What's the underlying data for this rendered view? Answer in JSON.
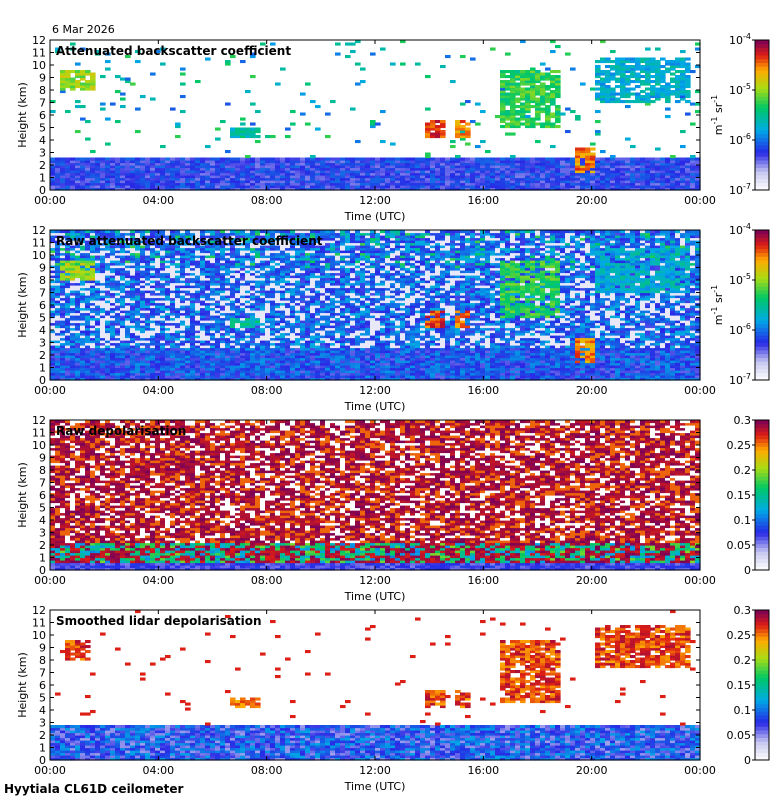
{
  "date": "6 Mar 2026",
  "footer": "Hyytiala CL61D ceilometer",
  "chart_data": [
    {
      "type": "heatmap",
      "title": "Attenuated backscatter coefficient",
      "xlabel": "Time (UTC)",
      "ylabel": "Height (km)",
      "xticks": [
        "00:00",
        "04:00",
        "08:00",
        "12:00",
        "16:00",
        "20:00",
        "00:00"
      ],
      "xlim_hours": [
        0,
        24
      ],
      "ylim": [
        0,
        12
      ],
      "yticks": [
        0,
        1,
        2,
        3,
        4,
        5,
        6,
        7,
        8,
        9,
        10,
        11,
        12
      ],
      "colorbar": {
        "scale": "log",
        "range": [
          1e-07,
          0.0001
        ],
        "tick_bases": [
          "10",
          "10",
          "10",
          "10"
        ],
        "tick_exponents": [
          "-7",
          "-6",
          "-5",
          "-4"
        ],
        "units": [
          "m",
          "-1",
          "sr",
          "-1"
        ]
      },
      "noise": "low",
      "features": [
        {
          "t": [
            0,
            24
          ],
          "h": [
            0,
            2.6
          ],
          "level": 0.15,
          "desc": "boundary layer aerosol"
        },
        {
          "t": [
            0.4,
            1.6
          ],
          "h": [
            8.0,
            9.5
          ],
          "level": 0.75
        },
        {
          "t": [
            6.6,
            7.7
          ],
          "h": [
            4.3,
            5.0
          ],
          "level": 0.55
        },
        {
          "t": [
            13.9,
            14.6
          ],
          "h": [
            4.2,
            5.6
          ],
          "level": 0.95
        },
        {
          "t": [
            15.0,
            15.6
          ],
          "h": [
            4.3,
            5.5
          ],
          "level": 0.9
        },
        {
          "t": [
            16.7,
            18.8
          ],
          "h": [
            5.0,
            9.5
          ],
          "level": 0.65
        },
        {
          "t": [
            19.4,
            20.1
          ],
          "h": [
            1.5,
            3.4
          ],
          "level": 0.9
        },
        {
          "t": [
            20.2,
            23.6
          ],
          "h": [
            7.0,
            10.5
          ],
          "level": 0.5
        }
      ]
    },
    {
      "type": "heatmap",
      "title": "Raw attenuated backscatter coefficient",
      "xlabel": "Time (UTC)",
      "ylabel": "Height (km)",
      "xticks": [
        "00:00",
        "04:00",
        "08:00",
        "12:00",
        "16:00",
        "20:00",
        "00:00"
      ],
      "xlim_hours": [
        0,
        24
      ],
      "ylim": [
        0,
        12
      ],
      "yticks": [
        0,
        1,
        2,
        3,
        4,
        5,
        6,
        7,
        8,
        9,
        10,
        11,
        12
      ],
      "colorbar": {
        "scale": "log",
        "range": [
          1e-07,
          0.0001
        ],
        "tick_bases": [
          "10",
          "10",
          "10",
          "10"
        ],
        "tick_exponents": [
          "-7",
          "-6",
          "-5",
          "-4"
        ],
        "units": [
          "m",
          "-1",
          "sr",
          "-1"
        ]
      },
      "noise": "high",
      "features": [
        {
          "t": [
            0,
            24
          ],
          "h": [
            0,
            2.6
          ],
          "level": 0.15
        },
        {
          "t": [
            0.4,
            1.6
          ],
          "h": [
            8.0,
            9.5
          ],
          "level": 0.75
        },
        {
          "t": [
            6.6,
            7.7
          ],
          "h": [
            4.3,
            5.0
          ],
          "level": 0.55
        },
        {
          "t": [
            13.9,
            14.6
          ],
          "h": [
            4.2,
            5.6
          ],
          "level": 0.95
        },
        {
          "t": [
            15.0,
            15.6
          ],
          "h": [
            4.3,
            5.5
          ],
          "level": 0.9
        },
        {
          "t": [
            16.7,
            18.8
          ],
          "h": [
            5.0,
            9.5
          ],
          "level": 0.65
        },
        {
          "t": [
            19.4,
            20.1
          ],
          "h": [
            1.5,
            3.4
          ],
          "level": 0.9
        },
        {
          "t": [
            20.2,
            23.6
          ],
          "h": [
            7.0,
            10.5
          ],
          "level": 0.5
        }
      ]
    },
    {
      "type": "heatmap",
      "title": "Raw depolarisation",
      "xlabel": "Time (UTC)",
      "ylabel": "Height (km)",
      "xticks": [
        "00:00",
        "04:00",
        "08:00",
        "12:00",
        "16:00",
        "20:00",
        "00:00"
      ],
      "xlim_hours": [
        0,
        24
      ],
      "ylim": [
        0,
        12
      ],
      "yticks": [
        0,
        1,
        2,
        3,
        4,
        5,
        6,
        7,
        8,
        9,
        10,
        11,
        12
      ],
      "colorbar": {
        "scale": "linear",
        "range": [
          0,
          0.3
        ],
        "ticks": [
          "0",
          "0.05",
          "0.1",
          "0.15",
          "0.2",
          "0.25",
          "0.3"
        ]
      },
      "noise": "depol",
      "features": []
    },
    {
      "type": "heatmap",
      "title": "Smoothed lidar depolarisation",
      "xlabel": "Time (UTC)",
      "ylabel": "Height (km)",
      "xticks": [
        "00:00",
        "04:00",
        "08:00",
        "12:00",
        "16:00",
        "20:00",
        "00:00"
      ],
      "xlim_hours": [
        0,
        24
      ],
      "ylim": [
        0,
        12
      ],
      "yticks": [
        0,
        1,
        2,
        3,
        4,
        5,
        6,
        7,
        8,
        9,
        10,
        11,
        12
      ],
      "colorbar": {
        "scale": "linear",
        "range": [
          0,
          0.3
        ],
        "ticks": [
          "0",
          "0.05",
          "0.1",
          "0.15",
          "0.2",
          "0.25",
          "0.3"
        ]
      },
      "noise": "smooth",
      "features": [
        {
          "t": [
            0,
            24
          ],
          "h": [
            0,
            2.8
          ],
          "level": 0.2
        },
        {
          "t": [
            0.5,
            1.5
          ],
          "h": [
            8.0,
            9.5
          ],
          "level": 0.95
        },
        {
          "t": [
            6.6,
            7.7
          ],
          "h": [
            4.3,
            5.0
          ],
          "level": 0.9
        },
        {
          "t": [
            13.9,
            14.6
          ],
          "h": [
            4.2,
            5.6
          ],
          "level": 0.95
        },
        {
          "t": [
            15.0,
            15.6
          ],
          "h": [
            4.3,
            5.5
          ],
          "level": 0.95
        },
        {
          "t": [
            16.7,
            18.8
          ],
          "h": [
            4.6,
            9.5
          ],
          "level": 0.95
        },
        {
          "t": [
            20.2,
            23.6
          ],
          "h": [
            7.5,
            10.8
          ],
          "level": 0.95
        }
      ]
    }
  ]
}
